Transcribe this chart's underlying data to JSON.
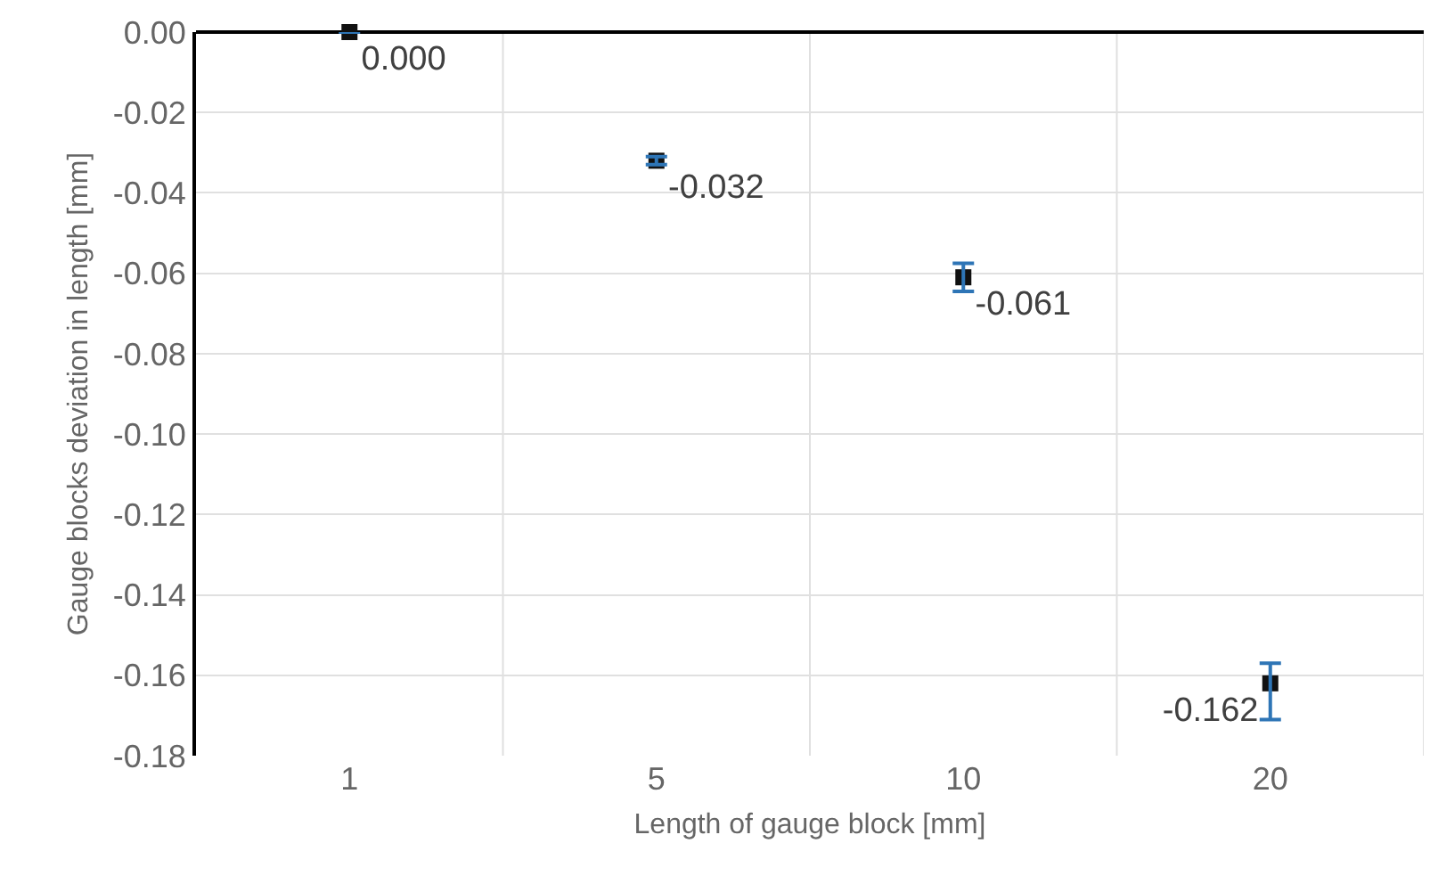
{
  "chart_data": {
    "type": "scatter",
    "xlabel": "Length of gauge block [mm]",
    "ylabel": "Gauge blocks deviation in length [mm]",
    "categories": [
      "1",
      "5",
      "10",
      "20"
    ],
    "series": [
      {
        "color": "#111111",
        "values": [
          0.0,
          -0.032,
          -0.061,
          -0.162
        ],
        "errors": [
          null,
          [
            -0.033,
            -0.031
          ],
          [
            -0.0645,
            -0.0575
          ],
          [
            -0.171,
            -0.157
          ]
        ],
        "value_labels": [
          "0.000",
          "-0.032",
          "-0.061",
          "-0.162"
        ]
      }
    ],
    "ylim": [
      -0.18,
      0.0
    ],
    "yticks": [
      {
        "value": 0,
        "label": "0.00"
      },
      {
        "value": -0.02,
        "label": "-0.02"
      },
      {
        "value": -0.04,
        "label": "-0.04"
      },
      {
        "value": -0.06,
        "label": "-0.06"
      },
      {
        "value": -0.08,
        "label": "-0.08"
      },
      {
        "value": -0.1,
        "label": "-0.10"
      },
      {
        "value": -0.12,
        "label": "-0.12"
      },
      {
        "value": -0.14,
        "label": "-0.14"
      },
      {
        "value": -0.16,
        "label": "-0.16"
      },
      {
        "value": -0.18,
        "label": "-0.18"
      }
    ],
    "grid": true,
    "marker": "square"
  }
}
